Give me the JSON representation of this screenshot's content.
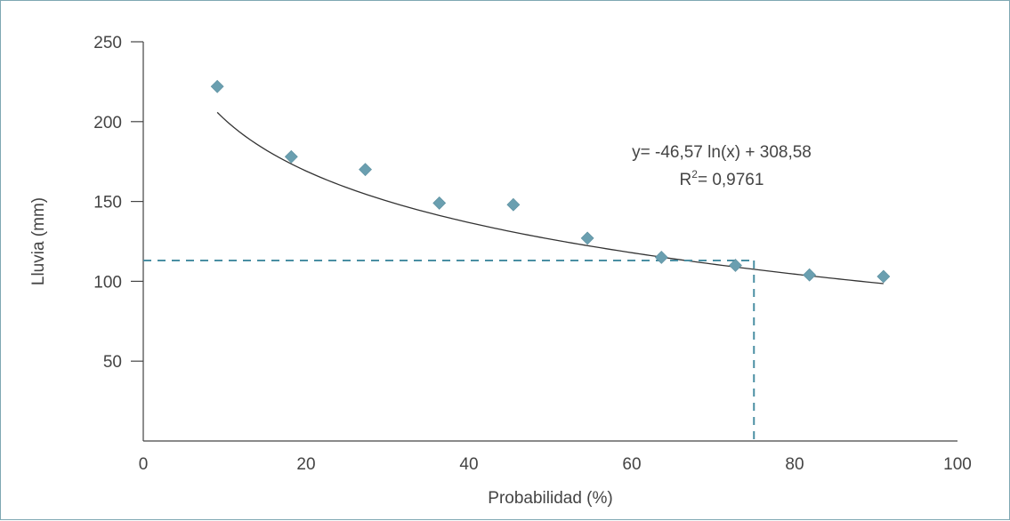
{
  "chart_data": {
    "type": "scatter",
    "xlabel": "Probabilidad (%)",
    "ylabel": "Lluvia (mm)",
    "xlim": [
      0,
      100
    ],
    "ylim": [
      0,
      250
    ],
    "x_ticks": [
      "0",
      "20",
      "40",
      "60",
      "80",
      "100"
    ],
    "y_ticks": [
      "50",
      "100",
      "150",
      "200",
      "250"
    ],
    "points": [
      {
        "x": 9.09,
        "y": 222
      },
      {
        "x": 18.18,
        "y": 178
      },
      {
        "x": 27.27,
        "y": 170
      },
      {
        "x": 36.36,
        "y": 149
      },
      {
        "x": 45.45,
        "y": 148
      },
      {
        "x": 54.55,
        "y": 127
      },
      {
        "x": 63.64,
        "y": 115
      },
      {
        "x": 72.73,
        "y": 110
      },
      {
        "x": 81.82,
        "y": 104
      },
      {
        "x": 90.91,
        "y": 103
      }
    ],
    "trendline": {
      "type": "logarithmic",
      "a": -46.57,
      "b": 308.58
    },
    "equation_text": "y= -46,57 ln(x) + 308,58",
    "r2_label": "R",
    "r2_superscript": "2",
    "r2_value_text": "= 0,9761",
    "reference": {
      "x": 75,
      "y": 113
    },
    "colors": {
      "marker": "#6a9fb0",
      "trend": "#333333",
      "reference": "#4a8fa3",
      "axis": "#444444"
    }
  }
}
